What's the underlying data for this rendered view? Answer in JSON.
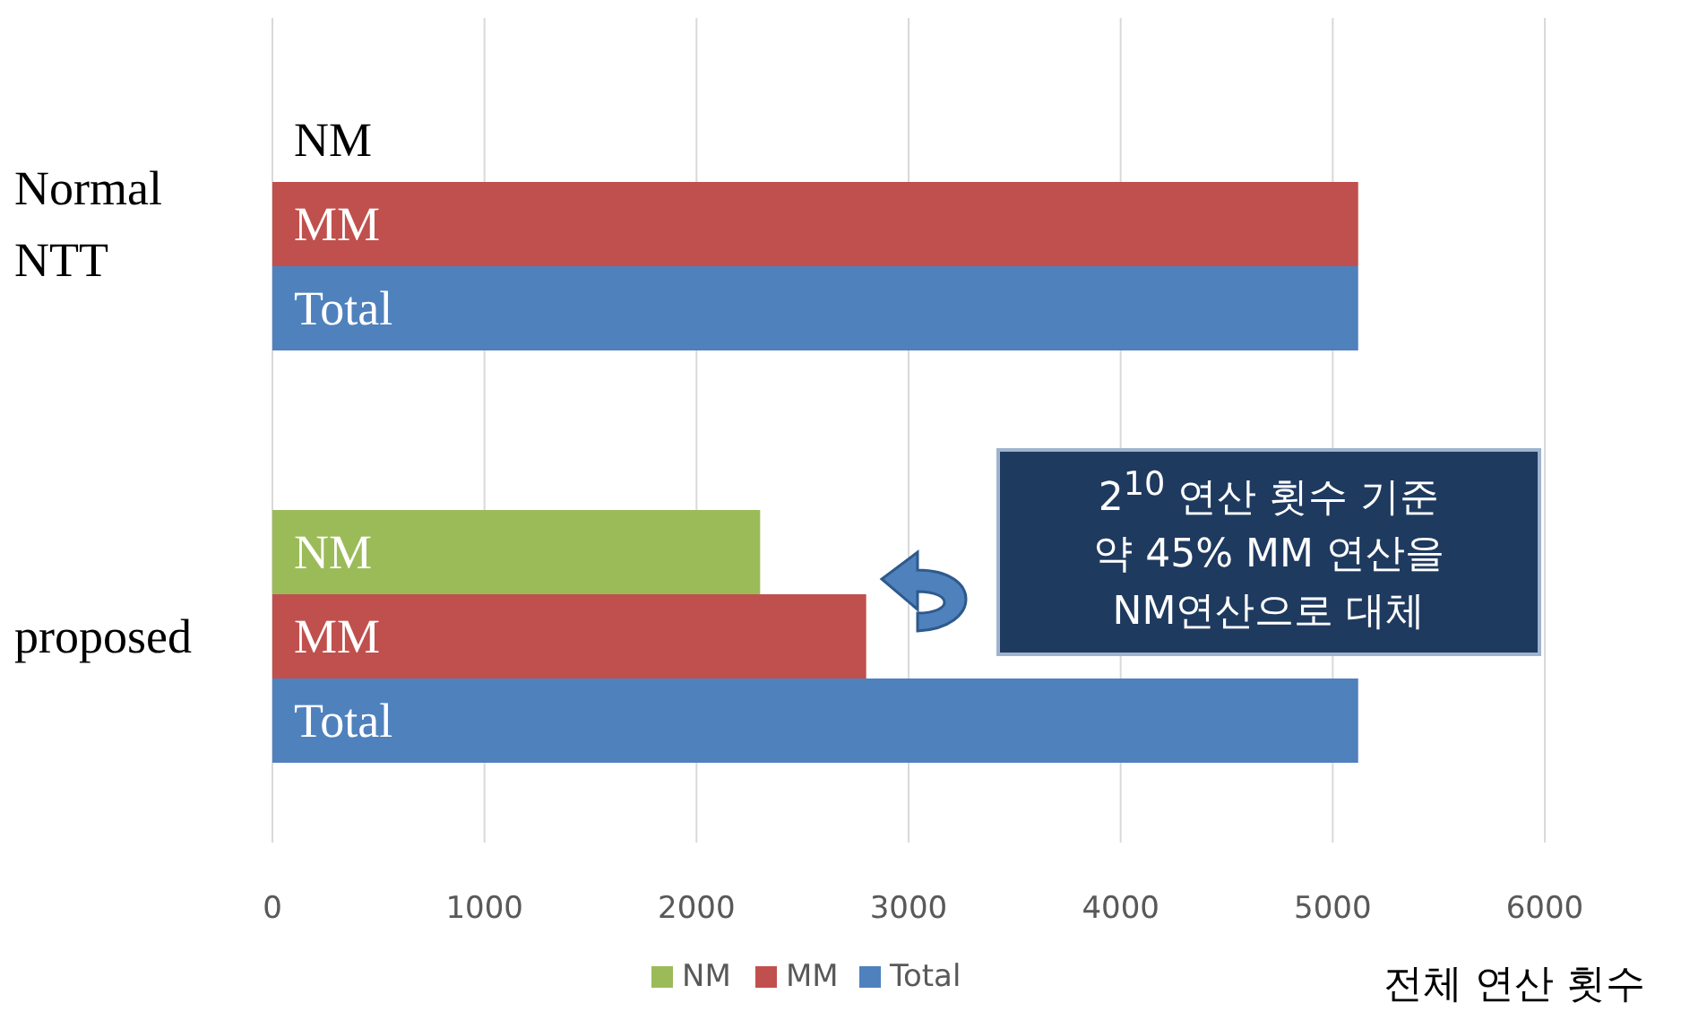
{
  "chart_data": {
    "type": "bar",
    "orientation": "horizontal",
    "categories": [
      "Normal NTT",
      "proposed"
    ],
    "series": [
      {
        "name": "NM",
        "color": "#9bbb59",
        "values": [
          0,
          2300
        ]
      },
      {
        "name": "MM",
        "color": "#c0504d",
        "values": [
          5120,
          2800
        ]
      },
      {
        "name": "Total",
        "color": "#4f81bd",
        "values": [
          5120,
          5120
        ]
      }
    ],
    "xlim": [
      0,
      6000
    ],
    "xticks": [
      0,
      1000,
      2000,
      3000,
      4000,
      5000,
      6000
    ],
    "xlabel": "전체 연산 횟수",
    "annotations": [
      "2$^{10}$ 연산 횟수 기준\n약 45% MM 연산을\nNM연산으로 대체"
    ],
    "grid": "x",
    "legend": "bottom"
  }
}
